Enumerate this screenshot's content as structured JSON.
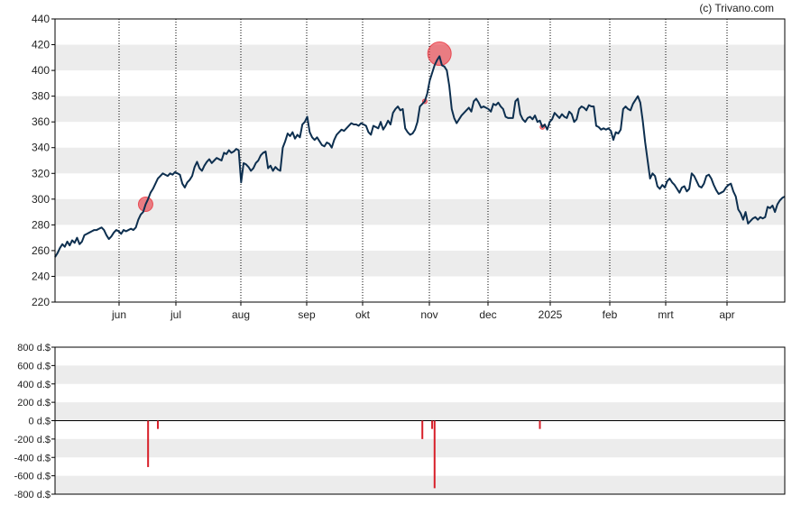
{
  "copyright": "(c) Trivano.com",
  "colors": {
    "price_line": "#0d2f4f",
    "band": "#ececec",
    "marker": "#e8323c",
    "bar": "#d8202a",
    "frame": "#000000",
    "grid": "#000000"
  },
  "chart_data": [
    {
      "type": "line",
      "ylim": [
        220,
        440
      ],
      "y_ticks": [
        "220",
        "240",
        "260",
        "280",
        "300",
        "320",
        "340",
        "360",
        "380",
        "400",
        "420",
        "440"
      ],
      "x_ticks": [
        "jun",
        "jul",
        "aug",
        "sep",
        "okt",
        "nov",
        "dec",
        "2025",
        "feb",
        "mrt",
        "apr"
      ],
      "grid": "vertical dotted at month starts, alternating horizontal bands",
      "series": [
        {
          "values": [
            255,
            258,
            262,
            265,
            263,
            267,
            264,
            268,
            266,
            270,
            265,
            267,
            272,
            273,
            274,
            275,
            276,
            276,
            277,
            278,
            276,
            272,
            269,
            271,
            274,
            276,
            275,
            273,
            276,
            275,
            276,
            277,
            276,
            278,
            284,
            288,
            290,
            296,
            300,
            305,
            308,
            312,
            316,
            318,
            320,
            319,
            318,
            320,
            319,
            321,
            320,
            319,
            312,
            309,
            313,
            315,
            318,
            325,
            329,
            324,
            322,
            326,
            329,
            331,
            328,
            330,
            332,
            331,
            330,
            336,
            335,
            338,
            336,
            337,
            339,
            338,
            313,
            328,
            327,
            325,
            322,
            324,
            328,
            330,
            334,
            336,
            337,
            324,
            326,
            322,
            325,
            323,
            322,
            340,
            345,
            351,
            349,
            352,
            347,
            350,
            348,
            358,
            360,
            364,
            352,
            348,
            346,
            348,
            345,
            342,
            341,
            344,
            343,
            340,
            346,
            350,
            352,
            354,
            353,
            355,
            357,
            359,
            358,
            358,
            357,
            359,
            358,
            357,
            352,
            350,
            357,
            356,
            355,
            360,
            354,
            357,
            361,
            358,
            367,
            370,
            372,
            369,
            370,
            355,
            352,
            350,
            351,
            354,
            360,
            372,
            374,
            376,
            382,
            392,
            398,
            404,
            408,
            411,
            404,
            403,
            400,
            388,
            370,
            363,
            359,
            362,
            365,
            367,
            369,
            371,
            368,
            376,
            378,
            375,
            371,
            372,
            371,
            370,
            368,
            374,
            373,
            375,
            372,
            370,
            364,
            363,
            363,
            363,
            376,
            378,
            366,
            362,
            360,
            363,
            364,
            362,
            365,
            360,
            361,
            356,
            358,
            354,
            360,
            362,
            367,
            365,
            363,
            366,
            364,
            363,
            368,
            366,
            360,
            362,
            370,
            372,
            371,
            369,
            373,
            372,
            372,
            357,
            356,
            354,
            355,
            354,
            355,
            353,
            346,
            352,
            351,
            354,
            370,
            372,
            370,
            369,
            374,
            377,
            380,
            375,
            361,
            344,
            330,
            316,
            320,
            318,
            310,
            308,
            311,
            309,
            314,
            316,
            313,
            311,
            308,
            305,
            309,
            310,
            306,
            308,
            320,
            318,
            314,
            310,
            309,
            312,
            318,
            319,
            316,
            311,
            307,
            304,
            305,
            306,
            309,
            311,
            312,
            306,
            302,
            292,
            289,
            284,
            290,
            281,
            283,
            285,
            286,
            284,
            286,
            285,
            286,
            294,
            293,
            295,
            290,
            296,
            299,
            301,
            302
          ]
        }
      ],
      "markers": [
        {
          "at": "jun",
          "value": 296,
          "size": "medium"
        },
        {
          "at": "nov",
          "value": 376,
          "size": "tiny"
        },
        {
          "at": "nov",
          "value": 413,
          "size": "large"
        },
        {
          "at": "2025",
          "value": 356,
          "size": "tiny"
        }
      ]
    },
    {
      "type": "bar",
      "ylim": [
        -800,
        800
      ],
      "y_ticks": [
        "800 d.$",
        "600 d.$",
        "400 d.$",
        "200 d.$",
        "0 d.$",
        "-200 d.$",
        "-400 d.$",
        "-600 d.$",
        "-800 d.$"
      ],
      "bars": [
        {
          "index": 38,
          "value": -505
        },
        {
          "index": 42,
          "value": -90
        },
        {
          "index": 150,
          "value": -200
        },
        {
          "index": 154,
          "value": -90
        },
        {
          "index": 155,
          "value": -735
        },
        {
          "index": 198,
          "value": -90
        }
      ]
    }
  ]
}
